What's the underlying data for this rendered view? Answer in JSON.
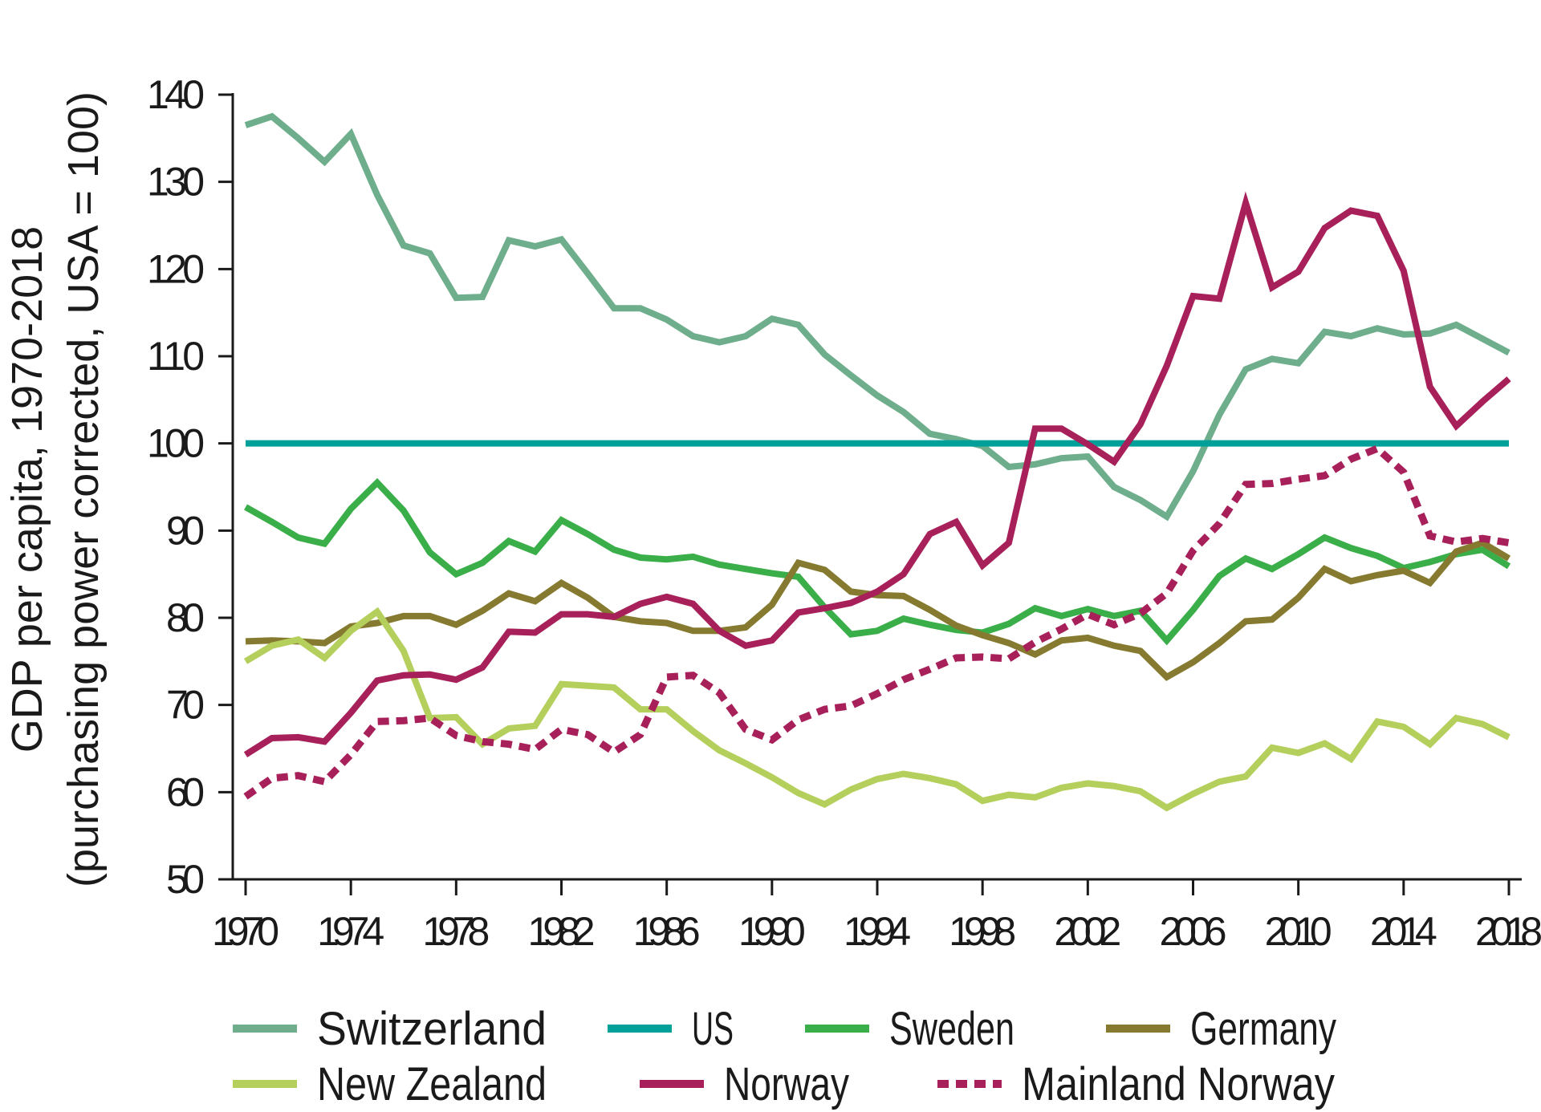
{
  "chart_data": {
    "type": "line",
    "title": "",
    "xlabel": "",
    "ylabel": [
      "GDP per capita, 1970-2018",
      "(purchasing power corrected, USA = 100)"
    ],
    "xlim": [
      1970,
      2018
    ],
    "ylim": [
      50,
      140
    ],
    "xticks": [
      "1970",
      "1974",
      "1978",
      "1982",
      "1986",
      "1990",
      "1994",
      "1998",
      "2002",
      "2006",
      "2010",
      "2014",
      "2018"
    ],
    "yticks": [
      "50",
      "60",
      "70",
      "80",
      "90",
      "100",
      "110",
      "120",
      "130",
      "140"
    ],
    "grid": false,
    "legend_position": "bottom",
    "x": [
      1970,
      1971,
      1972,
      1973,
      1974,
      1975,
      1976,
      1977,
      1978,
      1979,
      1980,
      1981,
      1982,
      1983,
      1984,
      1985,
      1986,
      1987,
      1988,
      1989,
      1990,
      1991,
      1992,
      1993,
      1994,
      1995,
      1996,
      1997,
      1998,
      1999,
      2000,
      2001,
      2002,
      2003,
      2004,
      2005,
      2006,
      2007,
      2008,
      2009,
      2010,
      2011,
      2012,
      2013,
      2014,
      2015,
      2016,
      2017,
      2018
    ],
    "series": [
      {
        "name": "Switzerland",
        "color": "#6fae8c",
        "dashed": false,
        "values": [
          136.5,
          137.5,
          135,
          132.3,
          135.5,
          128.5,
          122.7,
          121.8,
          116.7,
          116.8,
          123.3,
          122.6,
          123.4,
          119.5,
          115.5,
          115.5,
          114.2,
          112.3,
          111.6,
          112.3,
          114.3,
          113.6,
          110.2,
          107.8,
          105.5,
          103.6,
          101.1,
          100.5,
          99.7,
          97.3,
          97.6,
          98.3,
          98.5,
          95,
          93.5,
          91.6,
          96.8,
          103.3,
          108.5,
          109.7,
          109.2,
          112.8,
          112.3,
          113.2,
          112.5,
          112.6,
          113.6,
          112,
          110.4
        ]
      },
      {
        "name": "US",
        "color": "#00a09a",
        "dashed": false,
        "values": [
          100,
          100,
          100,
          100,
          100,
          100,
          100,
          100,
          100,
          100,
          100,
          100,
          100,
          100,
          100,
          100,
          100,
          100,
          100,
          100,
          100,
          100,
          100,
          100,
          100,
          100,
          100,
          100,
          100,
          100,
          100,
          100,
          100,
          100,
          100,
          100,
          100,
          100,
          100,
          100,
          100,
          100,
          100,
          100,
          100,
          100,
          100,
          100,
          100
        ]
      },
      {
        "name": "Sweden",
        "color": "#3aae48",
        "dashed": false,
        "values": [
          92.7,
          91,
          89.2,
          88.5,
          92.5,
          95.5,
          92.3,
          87.5,
          85,
          86.3,
          88.8,
          87.6,
          91.2,
          89.6,
          87.8,
          86.9,
          86.7,
          87,
          86.1,
          85.6,
          85.1,
          84.7,
          81.2,
          78.1,
          78.5,
          79.9,
          79.2,
          78.6,
          78.3,
          79.3,
          81.1,
          80.2,
          81,
          80.2,
          80.8,
          77.4,
          80.9,
          84.8,
          86.8,
          85.6,
          87.3,
          89.2,
          88,
          87.1,
          85.7,
          86.4,
          87.3,
          87.8,
          85.9
        ]
      },
      {
        "name": "Germany",
        "color": "#857a2f",
        "dashed": false,
        "values": [
          77.3,
          77.4,
          77.3,
          77.1,
          79,
          79.4,
          80.2,
          80.2,
          79.2,
          80.8,
          82.8,
          81.9,
          84,
          82.3,
          80.1,
          79.6,
          79.4,
          78.5,
          78.5,
          78.9,
          81.5,
          86.3,
          85.5,
          83,
          82.6,
          82.5,
          80.9,
          79.1,
          78,
          77.1,
          75.8,
          77.4,
          77.7,
          76.8,
          76.2,
          73.2,
          74.9,
          77.1,
          79.6,
          79.8,
          82.3,
          85.6,
          84.2,
          84.9,
          85.4,
          84,
          87.6,
          88.6,
          86.8
        ]
      },
      {
        "name": "New Zealand",
        "color": "#b5cf5c",
        "dashed": false,
        "values": [
          75,
          76.8,
          77.5,
          75.4,
          78.5,
          80.7,
          76.2,
          68.5,
          68.6,
          65.5,
          67.3,
          67.6,
          72.4,
          72.2,
          72,
          69.5,
          69.5,
          67,
          64.8,
          63.3,
          61.7,
          59.9,
          58.6,
          60.3,
          61.5,
          62.1,
          61.6,
          60.9,
          59,
          59.7,
          59.4,
          60.5,
          61,
          60.7,
          60.1,
          58.2,
          59.8,
          61.2,
          61.8,
          65.1,
          64.5,
          65.6,
          63.8,
          68.1,
          67.5,
          65.5,
          68.5,
          67.8,
          66.3
        ]
      },
      {
        "name": "Norway",
        "color": "#a8205a",
        "dashed": false,
        "values": [
          64.3,
          66.2,
          66.3,
          65.8,
          69.1,
          72.8,
          73.4,
          73.5,
          72.9,
          74.3,
          78.4,
          78.3,
          80.4,
          80.4,
          80.1,
          81.6,
          82.4,
          81.6,
          78.5,
          76.8,
          77.4,
          80.6,
          81.1,
          81.7,
          83,
          85,
          89.6,
          91,
          86,
          88.6,
          101.7,
          101.7,
          99.9,
          97.9,
          102.2,
          108.9,
          116.9,
          116.6,
          127.6,
          117.9,
          119.7,
          124.7,
          126.7,
          126.1,
          119.8,
          106.5,
          102,
          104.8,
          107.4
        ]
      },
      {
        "name": "Mainland Norway",
        "color": "#a8205a",
        "dashed": true,
        "values": [
          59.5,
          61.6,
          61.9,
          61.2,
          64.3,
          68.1,
          68.2,
          68.5,
          66.5,
          65.8,
          65.5,
          64.9,
          67.2,
          66.6,
          64.6,
          66.6,
          73.2,
          73.4,
          71.4,
          67.2,
          66,
          68.3,
          69.5,
          69.9,
          71.3,
          72.9,
          74.1,
          75.4,
          75.5,
          75.3,
          77.2,
          78.7,
          80.4,
          79.2,
          80.5,
          82.8,
          87.7,
          90.8,
          95.3,
          95.4,
          95.9,
          96.3,
          98.2,
          99.4,
          96.7,
          89.4,
          88.7,
          89.1,
          88.6
        ]
      }
    ]
  }
}
